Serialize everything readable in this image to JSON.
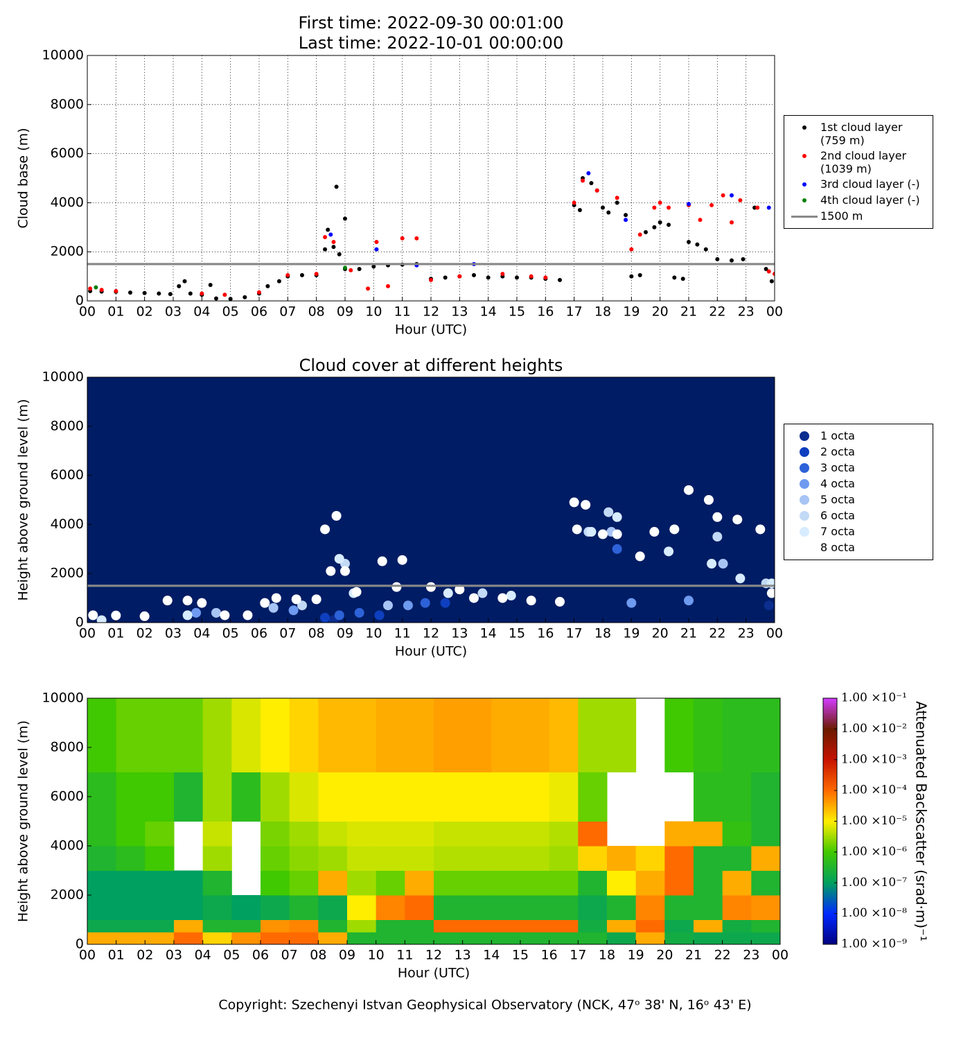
{
  "chart_data": [
    {
      "type": "scatter",
      "title": "First time: 2022-09-30 00:01:00",
      "subtitle": "Last time: 2022-10-01 00:00:00",
      "xlabel": "Hour (UTC)",
      "ylabel": "Cloud base (m)",
      "grid": true,
      "legend": "right",
      "xlim": [
        0,
        24
      ],
      "xticks": [
        {
          "value": 0,
          "label": "00"
        },
        {
          "value": 1,
          "label": "01"
        },
        {
          "value": 2,
          "label": "02"
        },
        {
          "value": 3,
          "label": "03"
        },
        {
          "value": 4,
          "label": "04"
        },
        {
          "value": 5,
          "label": "05"
        },
        {
          "value": 6,
          "label": "06"
        },
        {
          "value": 7,
          "label": "07"
        },
        {
          "value": 8,
          "label": "08"
        },
        {
          "value": 9,
          "label": "09"
        },
        10,
        11,
        12,
        13,
        14,
        15,
        16,
        17,
        18,
        19,
        20,
        21,
        22,
        23,
        {
          "value": 24,
          "label": "00"
        }
      ],
      "ylim": [
        0,
        10000
      ],
      "yticks": [
        0,
        2000,
        4000,
        6000,
        8000,
        10000
      ],
      "series": [
        {
          "name": "1st cloud layer (759 m)",
          "color": "#000000",
          "x": [
            0.1,
            0.5,
            1,
            1.5,
            2,
            2.5,
            2.9,
            3.2,
            3.4,
            3.6,
            4,
            4.3,
            4.5,
            5,
            5.5,
            6,
            6.3,
            6.7,
            7,
            7.5,
            8,
            8.3,
            8.4,
            8.6,
            8.7,
            8.8,
            9,
            9,
            9.5,
            10,
            10.5,
            11,
            11.5,
            12,
            12.5,
            13,
            13.5,
            14,
            14.5,
            15,
            15.5,
            16,
            16.5,
            17,
            17.2,
            17.3,
            17.6,
            17.8,
            18,
            18.2,
            18.5,
            18.8,
            19,
            19.3,
            19.5,
            19.8,
            20,
            20.3,
            20.5,
            20.8,
            21,
            21.3,
            21.6,
            22,
            22.5,
            22.9,
            23.3,
            23.7,
            23.9
          ],
          "values": [
            400,
            380,
            370,
            340,
            320,
            300,
            280,
            600,
            800,
            300,
            250,
            650,
            100,
            80,
            150,
            300,
            600,
            800,
            1000,
            1050,
            1050,
            2100,
            2900,
            2200,
            4650,
            1900,
            3350,
            1300,
            1300,
            1400,
            1450,
            1480,
            1500,
            900,
            950,
            1000,
            1050,
            950,
            1000,
            950,
            950,
            900,
            850,
            3900,
            3700,
            5000,
            4800,
            4500,
            3800,
            3600,
            4000,
            3500,
            1000,
            1050,
            2800,
            3000,
            3200,
            3100,
            950,
            900,
            2400,
            2300,
            2100,
            1700,
            1650,
            1700,
            3800,
            1300,
            800
          ]
        },
        {
          "name": "2nd cloud layer (1039 m)",
          "color": "#ff0000",
          "x": [
            0.1,
            0.5,
            1,
            4,
            4.8,
            6,
            7,
            8,
            8.3,
            8.6,
            9.2,
            9.8,
            10.1,
            10.5,
            11,
            11.5,
            12,
            13,
            14.5,
            15.5,
            16,
            17,
            17.3,
            17.8,
            18.5,
            19,
            19.3,
            19.8,
            20,
            20.3,
            21,
            21.4,
            21.8,
            22.2,
            22.5,
            22.8,
            23.4,
            23.8,
            24
          ],
          "values": [
            500,
            450,
            400,
            300,
            250,
            350,
            1050,
            1100,
            2600,
            2400,
            1250,
            500,
            2400,
            600,
            2550,
            2550,
            850,
            1000,
            1100,
            1000,
            950,
            4000,
            4900,
            4500,
            4200,
            2100,
            2700,
            3800,
            4000,
            3800,
            3900,
            3300,
            3900,
            4300,
            3200,
            4100,
            3800,
            1200,
            1100
          ]
        },
        {
          "name": "3rd cloud layer (-)",
          "color": "#0000ff",
          "x": [
            8.5,
            10.1,
            11.5,
            13.5,
            17.5,
            18.8,
            21,
            22.5,
            23.8
          ],
          "values": [
            2700,
            2100,
            1450,
            1500,
            5200,
            3300,
            3950,
            4300,
            3800
          ]
        },
        {
          "name": "4th cloud layer (-)",
          "color": "#007f00",
          "x": [
            0.3,
            9
          ],
          "values": [
            550,
            1350
          ]
        }
      ],
      "reference_line": {
        "label": "1500 m",
        "value": 1500,
        "color": "#888888"
      }
    },
    {
      "type": "scatter",
      "title": "Cloud cover at different heights",
      "xlabel": "Hour (UTC)",
      "ylabel": "Height above ground level (m)",
      "grid": false,
      "legend": "right",
      "background": "#001c64",
      "xlim": [
        0,
        24
      ],
      "xticks": [
        {
          "value": 0,
          "label": "00"
        },
        {
          "value": 1,
          "label": "01"
        },
        {
          "value": 2,
          "label": "02"
        },
        {
          "value": 3,
          "label": "03"
        },
        {
          "value": 4,
          "label": "04"
        },
        {
          "value": 5,
          "label": "05"
        },
        {
          "value": 6,
          "label": "06"
        },
        {
          "value": 7,
          "label": "07"
        },
        {
          "value": 8,
          "label": "08"
        },
        {
          "value": 9,
          "label": "09"
        },
        10,
        11,
        12,
        13,
        14,
        15,
        16,
        17,
        18,
        19,
        20,
        21,
        22,
        23,
        {
          "value": 24,
          "label": "00"
        }
      ],
      "ylim": [
        0,
        10000
      ],
      "yticks": [
        0,
        2000,
        4000,
        6000,
        8000,
        10000
      ],
      "series": [
        {
          "name": "1 octa",
          "color": "#0b2e8f",
          "x": [
            23.8,
            8.6
          ],
          "values": [
            700,
            100
          ]
        },
        {
          "name": "2 octa",
          "color": "#0e3fbf",
          "x": [
            8.3,
            10.2,
            12.5
          ],
          "values": [
            200,
            300,
            800
          ]
        },
        {
          "name": "3 octa",
          "color": "#2d62d8",
          "x": [
            8.8,
            9.5,
            11.8,
            18.5
          ],
          "values": [
            300,
            400,
            800,
            3000
          ]
        },
        {
          "name": "4 octa",
          "color": "#6e9af0",
          "x": [
            3.8,
            7.2,
            11.2,
            19,
            21
          ],
          "values": [
            400,
            500,
            700,
            800,
            900
          ]
        },
        {
          "name": "5 octa",
          "color": "#a8c4f5",
          "x": [
            4.5,
            6.5,
            10.5,
            18.3,
            22.2
          ],
          "values": [
            400,
            600,
            700,
            3700,
            2400
          ]
        },
        {
          "name": "6 octa",
          "color": "#c2daf5",
          "x": [
            7.5,
            9,
            13.8,
            17.5,
            18.2,
            22,
            23.7
          ],
          "values": [
            700,
            2400,
            1200,
            3700,
            4500,
            3500,
            1600
          ]
        },
        {
          "name": "7 octa",
          "color": "#d7ecff",
          "x": [
            0.5,
            3.5,
            8.8,
            9.3,
            12.6,
            14.8,
            17.6,
            18.5,
            20.3,
            21.8,
            22.8,
            23.9
          ],
          "values": [
            100,
            300,
            2600,
            1200,
            1200,
            1100,
            3700,
            4300,
            2900,
            2400,
            1800,
            1600
          ]
        },
        {
          "name": "8 octa",
          "color": "#ffffff",
          "x": [
            0.2,
            1,
            2,
            2.8,
            3.5,
            4,
            4.8,
            5.6,
            6.2,
            6.6,
            7.3,
            8,
            8.3,
            8.7,
            8.5,
            9,
            9.4,
            10.3,
            11,
            10.8,
            12,
            13,
            13.5,
            14.5,
            15.5,
            16.5,
            17,
            17.4,
            17.1,
            18,
            18.5,
            19.3,
            19.8,
            20.5,
            21,
            21.7,
            22,
            22.7,
            23.5,
            23.9
          ],
          "values": [
            300,
            290,
            260,
            900,
            900,
            800,
            300,
            300,
            800,
            1000,
            950,
            950,
            3800,
            4350,
            2100,
            2100,
            1250,
            2500,
            2550,
            1450,
            1450,
            1350,
            1000,
            1000,
            900,
            850,
            4900,
            4800,
            3800,
            3600,
            3600,
            2700,
            3700,
            3800,
            5400,
            5000,
            4300,
            4200,
            3800,
            1200
          ]
        }
      ],
      "reference_line": {
        "value": 1500,
        "color": "#888888"
      }
    },
    {
      "type": "heatmap",
      "xlabel": "Hour (UTC)",
      "ylabel": "Height above ground level (m)",
      "xlim": [
        0,
        24
      ],
      "xticks": [
        {
          "value": 0,
          "label": "00"
        },
        {
          "value": 1,
          "label": "01"
        },
        {
          "value": 2,
          "label": "02"
        },
        {
          "value": 3,
          "label": "03"
        },
        {
          "value": 4,
          "label": "04"
        },
        {
          "value": 5,
          "label": "05"
        },
        {
          "value": 6,
          "label": "06"
        },
        {
          "value": 7,
          "label": "07"
        },
        {
          "value": 8,
          "label": "08"
        },
        {
          "value": 9,
          "label": "09"
        },
        10,
        11,
        12,
        13,
        14,
        15,
        16,
        17,
        18,
        19,
        20,
        21,
        22,
        23,
        {
          "value": 24,
          "label": "00"
        }
      ],
      "ylim": [
        0,
        10000
      ],
      "yticks": [
        0,
        2000,
        4000,
        6000,
        8000,
        10000
      ],
      "x_edges": [
        0,
        1,
        2,
        3,
        4,
        5,
        6,
        7,
        8,
        9,
        10,
        11,
        12,
        13,
        14,
        15,
        16,
        17,
        18,
        19,
        20,
        21,
        22,
        23,
        24
      ],
      "y_edges": [
        0,
        500,
        1000,
        2000,
        3000,
        4000,
        5000,
        7000,
        10000
      ],
      "z": [
        [
          -4.5,
          -6.8,
          -7,
          -7,
          -6.5,
          -6.3,
          -6.3,
          -6
        ],
        [
          -4.5,
          -6.8,
          -7,
          -7,
          -6.3,
          -6,
          -6,
          -5.8
        ],
        [
          -4.5,
          -6.8,
          -7,
          -7,
          -6,
          -5.8,
          -6,
          -5.8
        ],
        [
          -4,
          -4.5,
          -7,
          -7,
          null,
          null,
          -6.5,
          -5.8
        ],
        [
          -4.8,
          -6.5,
          -6.8,
          -6.5,
          -5.5,
          -5.3,
          -5.5,
          -5.5
        ],
        [
          -4.3,
          -6.5,
          -7,
          null,
          null,
          null,
          -6.3,
          -5.2
        ],
        [
          -4,
          -4.3,
          -6.8,
          -6,
          -5.8,
          -5.7,
          -5.5,
          -5
        ],
        [
          -4,
          -4.2,
          -6.5,
          -5.8,
          -5.6,
          -5.5,
          -5.2,
          -4.8
        ],
        [
          -4.5,
          -6.5,
          -6.8,
          -4.5,
          -5.5,
          -5.3,
          -5,
          -4.6
        ],
        [
          -6.5,
          -5.5,
          -5,
          -5.5,
          -5.3,
          -5.2,
          -5,
          -4.6
        ],
        [
          -6.5,
          -6.5,
          -4.2,
          -5.8,
          -5.3,
          -5.2,
          -5,
          -4.5
        ],
        [
          -6.5,
          -6.5,
          -4,
          -4.5,
          -5.3,
          -5.2,
          -5,
          -4.5
        ],
        [
          -6.5,
          -4,
          -6.5,
          -5.8,
          -5.4,
          -5.3,
          -5,
          -4.4
        ],
        [
          -6.5,
          -4,
          -6.5,
          -5.8,
          -5.4,
          -5.3,
          -5,
          -4.4
        ],
        [
          -6.5,
          -4,
          -6.5,
          -5.8,
          -5.4,
          -5.3,
          -5,
          -4.5
        ],
        [
          -6.5,
          -4,
          -6.5,
          -5.8,
          -5.4,
          -5.3,
          -5,
          -4.5
        ],
        [
          -6.5,
          -4,
          -6.5,
          -5.8,
          -5.5,
          -5.4,
          -5.1,
          -4.6
        ],
        [
          -6.5,
          -6.7,
          -6.8,
          -6.5,
          -4.8,
          -4,
          -5.8,
          -5.5
        ],
        [
          -6.8,
          -4.5,
          -6.5,
          -5,
          -4.5,
          null,
          null,
          -5.5
        ],
        [
          -4.5,
          -4,
          -4.2,
          -4.5,
          -4.8,
          null,
          null,
          null
        ],
        [
          -6.7,
          -6.8,
          -6.5,
          -4,
          -4,
          -4.5,
          null,
          -6
        ],
        [
          -6.8,
          -4.5,
          -6.5,
          -6.5,
          -6.5,
          -4.5,
          -6.3,
          -6.2
        ],
        [
          -6.8,
          -6.7,
          -4.2,
          -4.5,
          -6.5,
          -6.2,
          -6.3,
          -6.3
        ],
        [
          -6.8,
          -6.5,
          -4.3,
          -6.5,
          -4.5,
          -6.5,
          -6.5,
          -6.3
        ]
      ],
      "zlim": [
        -9,
        -1
      ],
      "colorscale": [
        [
          -9,
          "#00007f"
        ],
        [
          -8,
          "#0028ff"
        ],
        [
          -7,
          "#00a060"
        ],
        [
          -6,
          "#40c800"
        ],
        [
          -5,
          "#ffee00"
        ],
        [
          -4,
          "#ff6a00"
        ],
        [
          -3,
          "#c81400"
        ],
        [
          -2,
          "#6b1a00"
        ],
        [
          -1,
          "#d23cff"
        ]
      ],
      "colorbar_label": "Attenuated Backscatter (srad·m)⁻¹",
      "colorbar_ticks": [
        {
          "value": -9,
          "label": "1.00 ×10⁻⁹"
        },
        {
          "value": -8,
          "label": "1.00 ×10⁻⁸"
        },
        {
          "value": -7,
          "label": "1.00 ×10⁻⁷"
        },
        {
          "value": -6,
          "label": "1.00 ×10⁻⁶"
        },
        {
          "value": -5,
          "label": "1.00 ×10⁻⁵"
        },
        {
          "value": -4,
          "label": "1.00 ×10⁻⁴"
        },
        {
          "value": -3,
          "label": "1.00 ×10⁻³"
        },
        {
          "value": -2,
          "label": "1.00 ×10⁻²"
        },
        {
          "value": -1,
          "label": "1.00 ×10⁻¹"
        }
      ]
    }
  ],
  "footer": "Copyright: Szechenyi Istvan Geophysical Observatory (NCK, 47ᵒ 38' N, 16ᵒ 43' E)"
}
